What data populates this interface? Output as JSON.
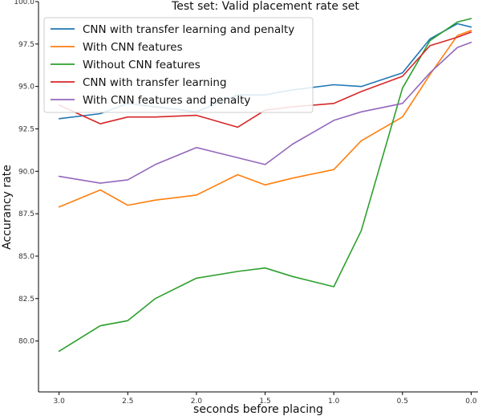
{
  "chart_data": {
    "type": "line",
    "title": "Test set: Valid placement rate set",
    "xlabel": "seconds before placing",
    "ylabel": "Accurancy rate",
    "x_reversed": true,
    "xlim": [
      3.15,
      -0.05
    ],
    "ylim": [
      77.0,
      100.0
    ],
    "xticks": [
      3.0,
      2.5,
      2.0,
      1.5,
      1.0,
      0.5,
      0.0
    ],
    "xtick_labels": [
      "3.0",
      "2.5",
      "2.0",
      "1.5",
      "1.0",
      "0.5",
      "0.0"
    ],
    "yticks": [
      80.0,
      82.5,
      85.0,
      87.5,
      90.0,
      92.5,
      95.0,
      97.5,
      100.0
    ],
    "ytick_labels": [
      "80.0",
      "82.5",
      "85.0",
      "87.5",
      "90.0",
      "92.5",
      "95.0",
      "97.5",
      "100.0"
    ],
    "grid": false,
    "legend_position": "top-left",
    "series": [
      {
        "name": "CNN with transfer learning and penalty",
        "color": "#1f77b4",
        "x": [
          3.0,
          2.7,
          2.5,
          2.3,
          2.0,
          1.7,
          1.5,
          1.3,
          1.0,
          0.8,
          0.5,
          0.3,
          0.1,
          0.0
        ],
        "y": [
          93.1,
          93.4,
          94.0,
          93.8,
          93.5,
          94.5,
          94.5,
          94.8,
          95.1,
          95.0,
          95.8,
          97.8,
          98.7,
          98.5
        ]
      },
      {
        "name": "With CNN features",
        "color": "#ff7f0e",
        "x": [
          3.0,
          2.7,
          2.5,
          2.3,
          2.0,
          1.7,
          1.5,
          1.3,
          1.0,
          0.8,
          0.5,
          0.3,
          0.1,
          0.0
        ],
        "y": [
          87.9,
          88.9,
          88.0,
          88.3,
          88.6,
          89.8,
          89.2,
          89.6,
          90.1,
          91.8,
          93.2,
          95.7,
          98.0,
          98.3
        ]
      },
      {
        "name": "Without CNN features",
        "color": "#2ca02c",
        "x": [
          3.0,
          2.7,
          2.5,
          2.3,
          2.0,
          1.7,
          1.5,
          1.3,
          1.0,
          0.8,
          0.5,
          0.3,
          0.1,
          0.0
        ],
        "y": [
          79.4,
          80.9,
          81.2,
          82.5,
          83.7,
          84.1,
          84.3,
          83.8,
          83.2,
          86.5,
          94.9,
          97.7,
          98.8,
          99.0
        ]
      },
      {
        "name": "CNN with transfer learning",
        "color": "#d62728",
        "x": [
          3.0,
          2.7,
          2.5,
          2.3,
          2.0,
          1.7,
          1.5,
          1.3,
          1.0,
          0.8,
          0.5,
          0.3,
          0.1,
          0.0
        ],
        "y": [
          93.9,
          92.8,
          93.2,
          93.2,
          93.3,
          92.6,
          93.6,
          93.8,
          94.0,
          94.7,
          95.6,
          97.4,
          97.9,
          98.2
        ]
      },
      {
        "name": "With CNN features and penalty",
        "color": "#9467bd",
        "x": [
          3.0,
          2.7,
          2.5,
          2.3,
          2.0,
          1.7,
          1.5,
          1.3,
          1.0,
          0.8,
          0.5,
          0.3,
          0.1,
          0.0
        ],
        "y": [
          89.7,
          89.3,
          89.5,
          90.4,
          91.4,
          90.8,
          90.4,
          91.6,
          93.0,
          93.5,
          94.0,
          95.8,
          97.3,
          97.6
        ]
      }
    ]
  }
}
